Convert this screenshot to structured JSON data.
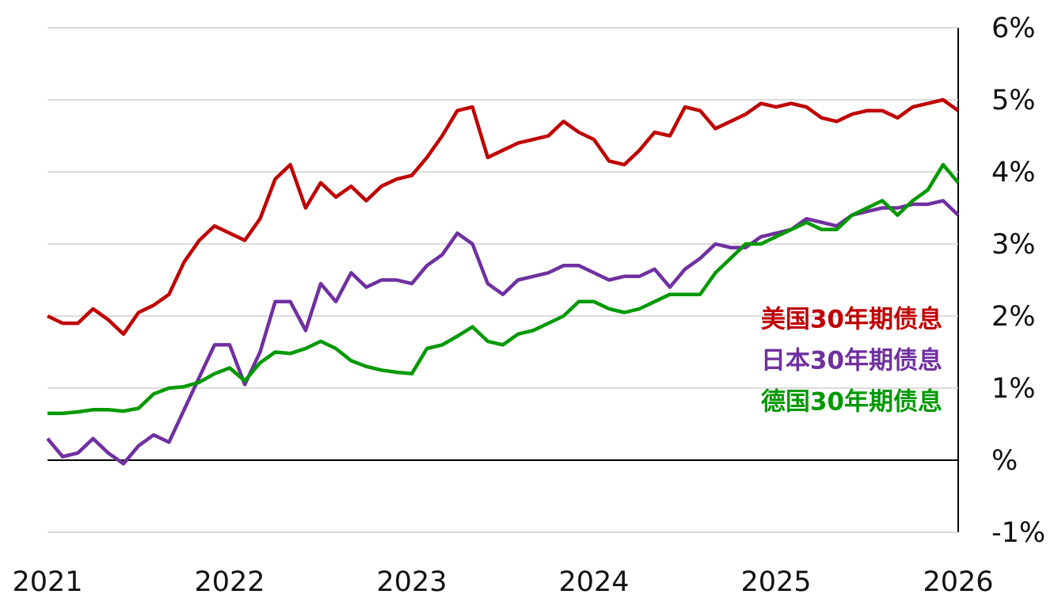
{
  "chart_data": {
    "type": "line",
    "x": [
      2021,
      2021.083,
      2021.167,
      2021.25,
      2021.333,
      2021.417,
      2021.5,
      2021.583,
      2021.667,
      2021.75,
      2021.833,
      2021.917,
      2022,
      2022.083,
      2022.167,
      2022.25,
      2022.333,
      2022.417,
      2022.5,
      2022.583,
      2022.667,
      2022.75,
      2022.833,
      2022.917,
      2023,
      2023.083,
      2023.167,
      2023.25,
      2023.333,
      2023.417,
      2023.5,
      2023.583,
      2023.667,
      2023.75,
      2023.833,
      2023.917,
      2024,
      2024.083,
      2024.167,
      2024.25,
      2024.333,
      2024.417,
      2024.5,
      2024.583,
      2024.667,
      2024.75,
      2024.833,
      2024.917,
      2025,
      2025.083,
      2025.167,
      2025.25,
      2025.333,
      2025.417,
      2025.5,
      2025.583,
      2025.667,
      2025.75,
      2025.833,
      2025.917,
      2026
    ],
    "series": [
      {
        "name": "美国30年期债息",
        "color": "#c00000",
        "values": [
          2.0,
          1.9,
          1.9,
          2.1,
          1.95,
          1.75,
          2.05,
          2.15,
          2.3,
          2.75,
          3.05,
          3.25,
          3.15,
          3.05,
          3.35,
          3.9,
          4.1,
          3.5,
          3.85,
          3.65,
          3.8,
          3.6,
          3.8,
          3.9,
          3.95,
          4.2,
          4.5,
          4.85,
          4.9,
          4.2,
          4.3,
          4.4,
          4.45,
          4.5,
          4.7,
          4.55,
          4.45,
          4.15,
          4.1,
          4.3,
          4.55,
          4.5,
          4.9,
          4.85,
          4.6,
          4.7,
          4.8,
          4.95,
          4.9,
          4.95,
          4.9,
          4.75,
          4.7,
          4.8,
          4.85,
          4.85,
          4.75,
          4.9,
          4.95,
          5.0,
          4.85
        ]
      },
      {
        "name": "日本30年期债息",
        "color": "#7030a0",
        "values": [
          0.3,
          0.05,
          0.1,
          0.3,
          0.1,
          -0.05,
          0.2,
          0.35,
          0.25,
          0.7,
          1.15,
          1.6,
          1.6,
          1.05,
          1.5,
          2.2,
          2.2,
          1.8,
          2.45,
          2.2,
          2.6,
          2.4,
          2.5,
          2.5,
          2.45,
          2.7,
          2.85,
          3.15,
          3.0,
          2.45,
          2.3,
          2.5,
          2.55,
          2.6,
          2.7,
          2.7,
          2.6,
          2.5,
          2.55,
          2.55,
          2.65,
          2.4,
          2.65,
          2.8,
          3.0,
          2.95,
          2.95,
          3.1,
          3.15,
          3.2,
          3.35,
          3.3,
          3.25,
          3.4,
          3.45,
          3.5,
          3.5,
          3.55,
          3.55,
          3.6,
          3.4
        ]
      },
      {
        "name": "德国30年期债息",
        "color": "#009900",
        "values": [
          0.65,
          0.65,
          0.67,
          0.7,
          0.7,
          0.68,
          0.72,
          0.92,
          1.0,
          1.02,
          1.08,
          1.2,
          1.28,
          1.1,
          1.35,
          1.5,
          1.48,
          1.55,
          1.65,
          1.55,
          1.38,
          1.3,
          1.25,
          1.22,
          1.2,
          1.55,
          1.6,
          1.72,
          1.85,
          1.65,
          1.6,
          1.75,
          1.8,
          1.9,
          2.0,
          2.2,
          2.2,
          2.1,
          2.05,
          2.1,
          2.2,
          2.3,
          2.3,
          2.3,
          2.6,
          2.8,
          3.0,
          3.0,
          3.1,
          3.2,
          3.3,
          3.2,
          3.2,
          3.4,
          3.5,
          3.6,
          3.4,
          3.6,
          3.75,
          4.1,
          3.85
        ]
      }
    ],
    "xlim": [
      2021,
      2026
    ],
    "xticks": [
      2021,
      2022,
      2023,
      2024,
      2025,
      2026
    ],
    "ylim": [
      -1,
      6
    ],
    "yticks": [
      {
        "value": -1,
        "label": "-1%"
      },
      {
        "value": 0,
        "label": "%"
      },
      {
        "value": 1,
        "label": "1%"
      },
      {
        "value": 2,
        "label": "2%"
      },
      {
        "value": 3,
        "label": "3%"
      },
      {
        "value": 4,
        "label": "4%"
      },
      {
        "value": 5,
        "label": "5%"
      },
      {
        "value": 6,
        "label": "6%"
      }
    ],
    "grid": true
  }
}
